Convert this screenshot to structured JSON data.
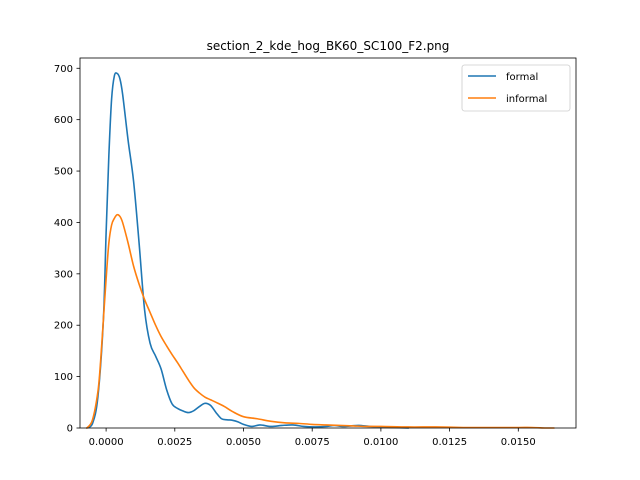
{
  "chart_data": {
    "type": "line",
    "title": "section_2_kde_hog_BK60_SC100_F2.png",
    "xlabel": "",
    "ylabel": "",
    "xlim": [
      -0.00095,
      0.0171
    ],
    "ylim": [
      0,
      720
    ],
    "x_ticks": [
      0.0,
      0.0025,
      0.005,
      0.0075,
      0.01,
      0.0125,
      0.015
    ],
    "x_tick_labels": [
      "0.0000",
      "0.0025",
      "0.0050",
      "0.0075",
      "0.0100",
      "0.0125",
      "0.0150"
    ],
    "y_ticks": [
      0,
      100,
      200,
      300,
      400,
      500,
      600,
      700
    ],
    "y_tick_labels": [
      "0",
      "100",
      "200",
      "300",
      "400",
      "500",
      "600",
      "700"
    ],
    "grid": false,
    "legend_position": "top-right",
    "series": [
      {
        "name": "formal",
        "color": "#1f77b4",
        "x": [
          -0.0007,
          -0.0005,
          -0.0003,
          -0.0001,
          0.0,
          0.0001,
          0.0002,
          0.0003,
          0.0004,
          0.0005,
          0.0006,
          0.0008,
          0.001,
          0.0012,
          0.0014,
          0.0016,
          0.0018,
          0.002,
          0.0022,
          0.0024,
          0.0026,
          0.0028,
          0.003,
          0.0032,
          0.0034,
          0.0036,
          0.0038,
          0.004,
          0.0042,
          0.0044,
          0.0046,
          0.0048,
          0.005,
          0.0053,
          0.0056,
          0.006,
          0.0064,
          0.0068,
          0.0072,
          0.0076,
          0.008,
          0.0083,
          0.0086,
          0.0089,
          0.0092,
          0.0096,
          0.01,
          0.0105,
          0.011
        ],
        "y": [
          0,
          8,
          60,
          210,
          380,
          530,
          640,
          685,
          690,
          680,
          650,
          560,
          480,
          360,
          230,
          165,
          140,
          115,
          75,
          47,
          38,
          33,
          30,
          34,
          42,
          48,
          44,
          30,
          18,
          16,
          15,
          12,
          7,
          3,
          6,
          3,
          5,
          6,
          3,
          2,
          3,
          5,
          3,
          4,
          5,
          3,
          2,
          1,
          0
        ]
      },
      {
        "name": "informal",
        "color": "#ff7f0e",
        "x": [
          -0.0007,
          -0.0005,
          -0.0003,
          -0.0002,
          -0.0001,
          0.0,
          0.0001,
          0.0002,
          0.0003,
          0.0004,
          0.0005,
          0.0006,
          0.0008,
          0.001,
          0.0012,
          0.0014,
          0.0016,
          0.0018,
          0.002,
          0.0022,
          0.0024,
          0.0026,
          0.0028,
          0.003,
          0.0032,
          0.0034,
          0.0036,
          0.0038,
          0.004,
          0.0043,
          0.0046,
          0.005,
          0.0055,
          0.006,
          0.0065,
          0.007,
          0.0075,
          0.008,
          0.0085,
          0.009,
          0.0095,
          0.01,
          0.011,
          0.012,
          0.013,
          0.014,
          0.015,
          0.0155,
          0.016,
          0.0163
        ],
        "y": [
          0,
          15,
          70,
          130,
          210,
          290,
          360,
          395,
          408,
          415,
          412,
          400,
          360,
          315,
          280,
          250,
          225,
          200,
          178,
          160,
          143,
          127,
          110,
          93,
          78,
          68,
          60,
          55,
          50,
          42,
          32,
          22,
          18,
          13,
          10,
          9,
          7,
          6,
          5,
          4,
          3,
          3,
          2,
          2,
          1,
          1,
          1,
          1,
          0,
          0
        ]
      }
    ]
  }
}
